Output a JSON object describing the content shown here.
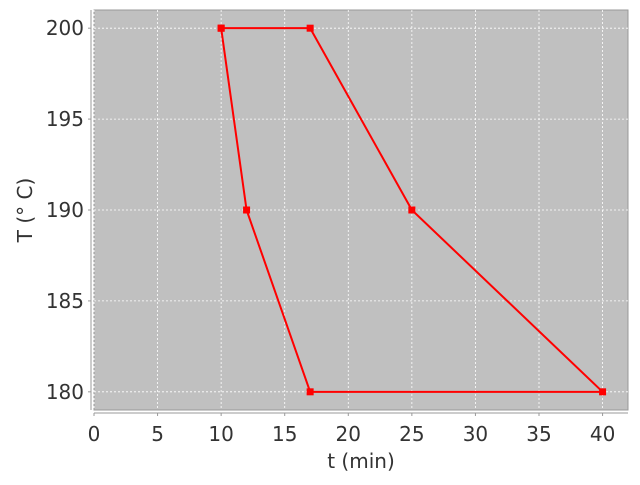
{
  "chart_data": {
    "type": "line",
    "title": "",
    "xlabel": "t (min)",
    "ylabel": "T (° C)",
    "xlim": [
      0,
      42
    ],
    "ylim": [
      179,
      201
    ],
    "xticks": [
      0,
      5,
      10,
      15,
      20,
      25,
      30,
      35,
      40
    ],
    "yticks": [
      180,
      185,
      190,
      195,
      200
    ],
    "grid": true,
    "closed": true,
    "series": [
      {
        "x": [
          10,
          17,
          25,
          40,
          17,
          12,
          10
        ],
        "y": [
          200,
          200,
          190,
          180,
          180,
          190,
          200
        ],
        "color": "#ff0000",
        "marker": "square"
      }
    ],
    "plot_background": "#c0c0c0",
    "grid_color": "#ffffff"
  }
}
